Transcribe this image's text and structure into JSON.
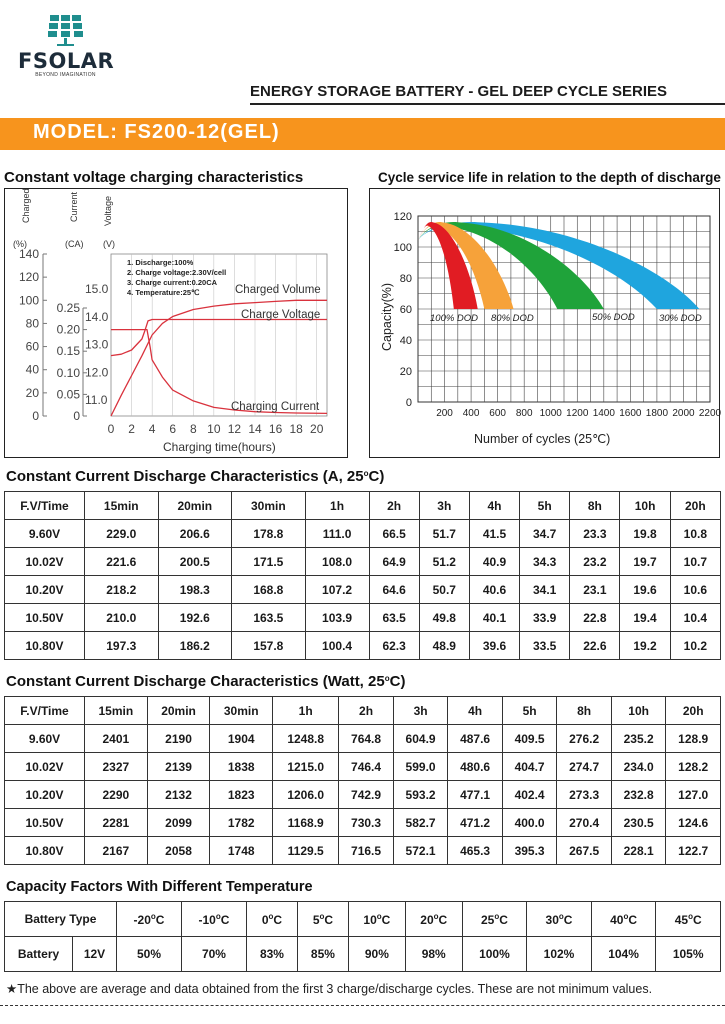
{
  "brand": {
    "name": "FSOLAR",
    "tagline": "BEYOND IMAGINATION"
  },
  "header": {
    "series": "ENERGY STORAGE BATTERY - GEL DEEP CYCLE SERIES",
    "model": "MODEL: FS200-12(GEL)"
  },
  "colors": {
    "accent": "#f7941d",
    "charge_curve": "#d9323d",
    "dod100": "#e11c23",
    "dod80": "#f6a23a",
    "dod50": "#1fa33a",
    "dod30": "#1fa5de"
  },
  "charging_chart": {
    "title": "Constant voltage charging characteristics",
    "axis1_label": "Charged Volume",
    "axis1_unit": "(%)",
    "axis2_label": "Current",
    "axis2_unit": "(CA)",
    "axis3_label": "Voltage",
    "axis3_unit": "(V)",
    "notes": [
      "1. Discharge:100%",
      "2. Charge voltage:2.30V/cell",
      "3. Charge current:0.20CA",
      "4. Temperature:25℃"
    ],
    "curve_labels": {
      "volume": "Charged Volume",
      "voltage": "Charge Voltage",
      "current": "Charging Current"
    },
    "xlabel": "Charging time(hours)"
  },
  "chart_data": [
    {
      "type": "line",
      "title": "Constant voltage charging characteristics",
      "xlabel": "Charging time(hours)",
      "x_ticks": [
        0,
        2,
        4,
        6,
        8,
        10,
        12,
        14,
        16,
        18,
        20
      ],
      "xlim": [
        0,
        21
      ],
      "volume_ticks": [
        0,
        20,
        40,
        60,
        80,
        100,
        120,
        140
      ],
      "current_ticks": [
        "0",
        "0.05",
        "0.10",
        "0.15",
        "0.20",
        "0.25"
      ],
      "voltage_ticks": [
        "11.0",
        "12.0",
        "13.0",
        "14.0",
        "15.0"
      ],
      "series": [
        {
          "name": "Charged Volume",
          "axis": "volume",
          "x": [
            0,
            1,
            2,
            3,
            4,
            5,
            6,
            8,
            10,
            12,
            14,
            16,
            18,
            20,
            21
          ],
          "y": [
            0,
            18,
            35,
            52,
            70,
            80,
            86,
            92,
            95,
            97,
            98,
            99,
            100,
            100,
            100
          ]
        },
        {
          "name": "Charge Voltage",
          "axis": "voltage",
          "x": [
            0,
            1,
            2,
            3,
            3.3,
            3.6,
            4,
            6,
            10,
            21
          ],
          "y": [
            12.6,
            12.65,
            12.8,
            13.2,
            13.5,
            13.85,
            13.9,
            13.9,
            13.9,
            13.9
          ]
        },
        {
          "name": "Charging Current",
          "axis": "current",
          "x": [
            0,
            3.5,
            3.8,
            4,
            5,
            6,
            8,
            10,
            12,
            14,
            16,
            18,
            21
          ],
          "y": [
            0.2,
            0.2,
            0.16,
            0.13,
            0.09,
            0.06,
            0.035,
            0.02,
            0.014,
            0.01,
            0.008,
            0.007,
            0.006
          ]
        }
      ]
    },
    {
      "type": "area",
      "title": "Cycle service life in relation to the depth of discharge",
      "xlabel": "Number of cycles (25℃)",
      "ylabel": "Capacity(%)",
      "xlim": [
        0,
        2200
      ],
      "ylim": [
        0,
        120
      ],
      "x_ticks": [
        200,
        400,
        600,
        800,
        1000,
        1200,
        1400,
        1600,
        1800,
        2000,
        2200
      ],
      "y_ticks": [
        0,
        20,
        40,
        60,
        80,
        100,
        120
      ],
      "series": [
        {
          "name": "100% DOD",
          "end_cycles": [
            270,
            450
          ]
        },
        {
          "name": "80% DOD",
          "end_cycles": [
            500,
            720
          ]
        },
        {
          "name": "50% DOD",
          "end_cycles": [
            1050,
            1400
          ]
        },
        {
          "name": "30% DOD",
          "end_cycles": [
            1800,
            2120
          ]
        }
      ]
    }
  ],
  "cycle_chart": {
    "title": "Cycle service life in relation to the depth of discharge",
    "ylabel": "Capacity(%)",
    "xlabel": "Number of cycles (25℃)",
    "dod_labels": [
      "100% DOD",
      "80% DOD",
      "50% DOD",
      "30% DOD"
    ]
  },
  "amp_table": {
    "title": "Constant Current Discharge Characteristics (A, 25",
    "title_suffix": "C)",
    "headers": [
      "F.V/Time",
      "15min",
      "20min",
      "30min",
      "1h",
      "2h",
      "3h",
      "4h",
      "5h",
      "8h",
      "10h",
      "20h"
    ],
    "rows": [
      [
        "9.60V",
        "229.0",
        "206.6",
        "178.8",
        "111.0",
        "66.5",
        "51.7",
        "41.5",
        "34.7",
        "23.3",
        "19.8",
        "10.8"
      ],
      [
        "10.02V",
        "221.6",
        "200.5",
        "171.5",
        "108.0",
        "64.9",
        "51.2",
        "40.9",
        "34.3",
        "23.2",
        "19.7",
        "10.7"
      ],
      [
        "10.20V",
        "218.2",
        "198.3",
        "168.8",
        "107.2",
        "64.6",
        "50.7",
        "40.6",
        "34.1",
        "23.1",
        "19.6",
        "10.6"
      ],
      [
        "10.50V",
        "210.0",
        "192.6",
        "163.5",
        "103.9",
        "63.5",
        "49.8",
        "40.1",
        "33.9",
        "22.8",
        "19.4",
        "10.4"
      ],
      [
        "10.80V",
        "197.3",
        "186.2",
        "157.8",
        "100.4",
        "62.3",
        "48.9",
        "39.6",
        "33.5",
        "22.6",
        "19.2",
        "10.2"
      ]
    ]
  },
  "watt_table": {
    "title": "Constant Current Discharge Characteristics (Watt, 25",
    "title_suffix": "C)",
    "headers": [
      "F.V/Time",
      "15min",
      "20min",
      "30min",
      "1h",
      "2h",
      "3h",
      "4h",
      "5h",
      "8h",
      "10h",
      "20h"
    ],
    "rows": [
      [
        "9.60V",
        "2401",
        "2190",
        "1904",
        "1248.8",
        "764.8",
        "604.9",
        "487.6",
        "409.5",
        "276.2",
        "235.2",
        "128.9"
      ],
      [
        "10.02V",
        "2327",
        "2139",
        "1838",
        "1215.0",
        "746.4",
        "599.0",
        "480.6",
        "404.7",
        "274.7",
        "234.0",
        "128.2"
      ],
      [
        "10.20V",
        "2290",
        "2132",
        "1823",
        "1206.0",
        "742.9",
        "593.2",
        "477.1",
        "402.4",
        "273.3",
        "232.8",
        "127.0"
      ],
      [
        "10.50V",
        "2281",
        "2099",
        "1782",
        "1168.9",
        "730.3",
        "582.7",
        "471.2",
        "400.0",
        "270.4",
        "230.5",
        "124.6"
      ],
      [
        "10.80V",
        "2167",
        "2058",
        "1748",
        "1129.5",
        "716.5",
        "572.1",
        "465.3",
        "395.3",
        "267.5",
        "228.1",
        "122.7"
      ]
    ]
  },
  "temp_table": {
    "title": "Capacity Factors With Different Temperature",
    "header_label": "Battery Type",
    "temps": [
      "-20",
      "-10",
      "0",
      "5",
      "10",
      "20",
      "25",
      "30",
      "40",
      "45"
    ],
    "temp_unit": "C",
    "row_label": "Battery",
    "row_type": "12V",
    "values": [
      "50%",
      "70%",
      "83%",
      "85%",
      "90%",
      "98%",
      "100%",
      "102%",
      "104%",
      "105%"
    ]
  },
  "footnote": "★The above are average and data obtained from the first 3 charge/discharge cycles. These are not minimum values."
}
